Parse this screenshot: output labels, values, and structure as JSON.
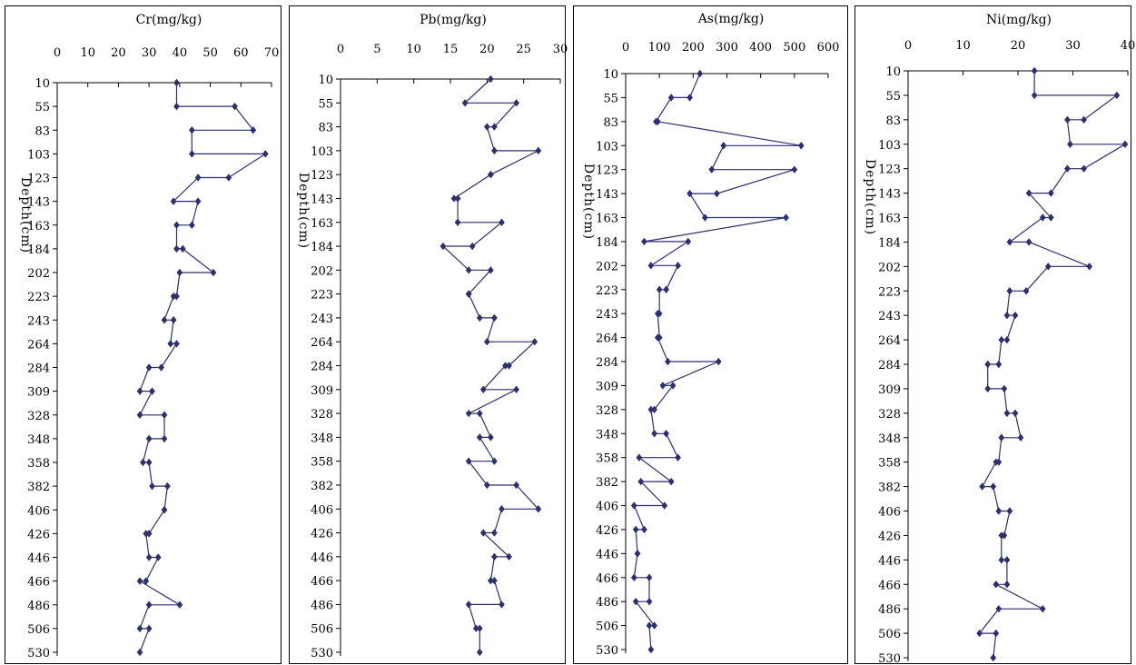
{
  "chart_data": [
    {
      "type": "line",
      "title": "Cr(mg/kg)",
      "ylabel": "Depth(cm)",
      "xlim": [
        0,
        70
      ],
      "xticks": [
        0,
        10,
        20,
        30,
        40,
        50,
        60,
        70
      ],
      "depths": [
        10,
        55,
        83,
        103,
        123,
        143,
        163,
        184,
        202,
        223,
        243,
        264,
        284,
        309,
        328,
        348,
        358,
        382,
        406,
        426,
        446,
        466,
        486,
        506,
        530
      ],
      "points": [
        {
          "y": 10,
          "x": 39
        },
        {
          "y": 55,
          "x": 39
        },
        {
          "y": 55,
          "x": 58
        },
        {
          "y": 83,
          "x": 64
        },
        {
          "y": 83,
          "x": 44
        },
        {
          "y": 103,
          "x": 44
        },
        {
          "y": 103,
          "x": 68
        },
        {
          "y": 123,
          "x": 56
        },
        {
          "y": 123,
          "x": 46
        },
        {
          "y": 143,
          "x": 38
        },
        {
          "y": 143,
          "x": 46
        },
        {
          "y": 163,
          "x": 44
        },
        {
          "y": 163,
          "x": 39
        },
        {
          "y": 184,
          "x": 39
        },
        {
          "y": 184,
          "x": 41
        },
        {
          "y": 202,
          "x": 51
        },
        {
          "y": 202,
          "x": 40
        },
        {
          "y": 223,
          "x": 39
        },
        {
          "y": 223,
          "x": 38
        },
        {
          "y": 243,
          "x": 35
        },
        {
          "y": 243,
          "x": 38
        },
        {
          "y": 264,
          "x": 37
        },
        {
          "y": 264,
          "x": 39
        },
        {
          "y": 284,
          "x": 34
        },
        {
          "y": 284,
          "x": 30
        },
        {
          "y": 309,
          "x": 27
        },
        {
          "y": 309,
          "x": 31
        },
        {
          "y": 328,
          "x": 27
        },
        {
          "y": 328,
          "x": 35
        },
        {
          "y": 348,
          "x": 35
        },
        {
          "y": 348,
          "x": 30
        },
        {
          "y": 358,
          "x": 28
        },
        {
          "y": 358,
          "x": 30
        },
        {
          "y": 382,
          "x": 31
        },
        {
          "y": 382,
          "x": 36
        },
        {
          "y": 406,
          "x": 35
        },
        {
          "y": 406,
          "x": 35
        },
        {
          "y": 426,
          "x": 30
        },
        {
          "y": 426,
          "x": 29
        },
        {
          "y": 446,
          "x": 30
        },
        {
          "y": 446,
          "x": 33
        },
        {
          "y": 466,
          "x": 29
        },
        {
          "y": 466,
          "x": 27
        },
        {
          "y": 486,
          "x": 40
        },
        {
          "y": 486,
          "x": 30
        },
        {
          "y": 506,
          "x": 27
        },
        {
          "y": 506,
          "x": 30
        },
        {
          "y": 530,
          "x": 27
        }
      ]
    },
    {
      "type": "line",
      "title": "Pb(mg/kg)",
      "ylabel": "Depth(cm)",
      "xlim": [
        0,
        30
      ],
      "xticks": [
        0,
        5,
        10,
        15,
        20,
        25,
        30
      ],
      "depths": [
        10,
        55,
        83,
        103,
        123,
        143,
        163,
        184,
        202,
        223,
        243,
        264,
        284,
        309,
        328,
        348,
        358,
        382,
        406,
        426,
        446,
        466,
        486,
        506,
        530
      ],
      "points": [
        {
          "y": 10,
          "x": 20.5
        },
        {
          "y": 55,
          "x": 17
        },
        {
          "y": 55,
          "x": 24
        },
        {
          "y": 83,
          "x": 21
        },
        {
          "y": 83,
          "x": 20
        },
        {
          "y": 103,
          "x": 21
        },
        {
          "y": 103,
          "x": 27
        },
        {
          "y": 123,
          "x": 20.5
        },
        {
          "y": 123,
          "x": 20.5
        },
        {
          "y": 143,
          "x": 15.5
        },
        {
          "y": 143,
          "x": 16
        },
        {
          "y": 163,
          "x": 16
        },
        {
          "y": 163,
          "x": 22
        },
        {
          "y": 184,
          "x": 18
        },
        {
          "y": 184,
          "x": 14
        },
        {
          "y": 202,
          "x": 17.5
        },
        {
          "y": 202,
          "x": 20.5
        },
        {
          "y": 223,
          "x": 17.5
        },
        {
          "y": 223,
          "x": 17.5
        },
        {
          "y": 243,
          "x": 19
        },
        {
          "y": 243,
          "x": 21
        },
        {
          "y": 264,
          "x": 20
        },
        {
          "y": 264,
          "x": 26.5
        },
        {
          "y": 284,
          "x": 23
        },
        {
          "y": 284,
          "x": 22.5
        },
        {
          "y": 309,
          "x": 19.5
        },
        {
          "y": 309,
          "x": 24
        },
        {
          "y": 328,
          "x": 17.5
        },
        {
          "y": 328,
          "x": 19
        },
        {
          "y": 348,
          "x": 20.5
        },
        {
          "y": 348,
          "x": 19
        },
        {
          "y": 358,
          "x": 21
        },
        {
          "y": 358,
          "x": 17.5
        },
        {
          "y": 382,
          "x": 20
        },
        {
          "y": 382,
          "x": 24
        },
        {
          "y": 406,
          "x": 27
        },
        {
          "y": 406,
          "x": 22
        },
        {
          "y": 426,
          "x": 21
        },
        {
          "y": 426,
          "x": 19.5
        },
        {
          "y": 446,
          "x": 23
        },
        {
          "y": 446,
          "x": 21
        },
        {
          "y": 466,
          "x": 20.5
        },
        {
          "y": 466,
          "x": 21
        },
        {
          "y": 486,
          "x": 22
        },
        {
          "y": 486,
          "x": 17.5
        },
        {
          "y": 506,
          "x": 18.5
        },
        {
          "y": 506,
          "x": 19
        },
        {
          "y": 530,
          "x": 19
        }
      ]
    },
    {
      "type": "line",
      "title": "As(mg/kg)",
      "ylabel": "Depth(cm)",
      "xlim": [
        0,
        600
      ],
      "xticks": [
        0,
        100,
        200,
        300,
        400,
        500,
        600
      ],
      "depths": [
        10,
        55,
        83,
        103,
        123,
        143,
        163,
        184,
        202,
        223,
        243,
        264,
        284,
        309,
        328,
        348,
        358,
        382,
        406,
        426,
        446,
        466,
        486,
        506,
        530
      ],
      "points": [
        {
          "y": 10,
          "x": 220
        },
        {
          "y": 55,
          "x": 190
        },
        {
          "y": 55,
          "x": 135
        },
        {
          "y": 83,
          "x": 90
        },
        {
          "y": 83,
          "x": 95
        },
        {
          "y": 103,
          "x": 520
        },
        {
          "y": 103,
          "x": 290
        },
        {
          "y": 123,
          "x": 255
        },
        {
          "y": 123,
          "x": 500
        },
        {
          "y": 143,
          "x": 270
        },
        {
          "y": 143,
          "x": 190
        },
        {
          "y": 163,
          "x": 235
        },
        {
          "y": 163,
          "x": 475
        },
        {
          "y": 184,
          "x": 55
        },
        {
          "y": 184,
          "x": 185
        },
        {
          "y": 202,
          "x": 75
        },
        {
          "y": 202,
          "x": 155
        },
        {
          "y": 223,
          "x": 120
        },
        {
          "y": 223,
          "x": 100
        },
        {
          "y": 243,
          "x": 100
        },
        {
          "y": 243,
          "x": 95
        },
        {
          "y": 264,
          "x": 100
        },
        {
          "y": 264,
          "x": 95
        },
        {
          "y": 284,
          "x": 125
        },
        {
          "y": 284,
          "x": 275
        },
        {
          "y": 309,
          "x": 110
        },
        {
          "y": 309,
          "x": 140
        },
        {
          "y": 328,
          "x": 85
        },
        {
          "y": 328,
          "x": 75
        },
        {
          "y": 348,
          "x": 85
        },
        {
          "y": 348,
          "x": 120
        },
        {
          "y": 358,
          "x": 155
        },
        {
          "y": 358,
          "x": 40
        },
        {
          "y": 382,
          "x": 135
        },
        {
          "y": 382,
          "x": 45
        },
        {
          "y": 406,
          "x": 115
        },
        {
          "y": 406,
          "x": 25
        },
        {
          "y": 426,
          "x": 55
        },
        {
          "y": 426,
          "x": 30
        },
        {
          "y": 446,
          "x": 35
        },
        {
          "y": 446,
          "x": 35
        },
        {
          "y": 466,
          "x": 25
        },
        {
          "y": 466,
          "x": 70
        },
        {
          "y": 486,
          "x": 70
        },
        {
          "y": 486,
          "x": 30
        },
        {
          "y": 506,
          "x": 85
        },
        {
          "y": 506,
          "x": 70
        },
        {
          "y": 530,
          "x": 75
        }
      ]
    },
    {
      "type": "line",
      "title": "Ni(mg/kg)",
      "ylabel": "Depth(cm)",
      "xlim": [
        0,
        40
      ],
      "xticks": [
        0,
        10,
        20,
        30,
        40
      ],
      "depths": [
        10,
        55,
        83,
        103,
        123,
        143,
        163,
        184,
        202,
        223,
        243,
        264,
        284,
        309,
        328,
        348,
        358,
        382,
        406,
        426,
        446,
        466,
        486,
        506,
        530
      ],
      "points": [
        {
          "y": 10,
          "x": 23
        },
        {
          "y": 55,
          "x": 23
        },
        {
          "y": 55,
          "x": 38
        },
        {
          "y": 83,
          "x": 32
        },
        {
          "y": 83,
          "x": 29
        },
        {
          "y": 103,
          "x": 29.5
        },
        {
          "y": 103,
          "x": 39.5
        },
        {
          "y": 123,
          "x": 32
        },
        {
          "y": 123,
          "x": 29
        },
        {
          "y": 143,
          "x": 26
        },
        {
          "y": 143,
          "x": 22
        },
        {
          "y": 163,
          "x": 26
        },
        {
          "y": 163,
          "x": 24.5
        },
        {
          "y": 184,
          "x": 18.5
        },
        {
          "y": 184,
          "x": 22
        },
        {
          "y": 202,
          "x": 33
        },
        {
          "y": 202,
          "x": 25.5
        },
        {
          "y": 223,
          "x": 21.5
        },
        {
          "y": 223,
          "x": 18.5
        },
        {
          "y": 243,
          "x": 18
        },
        {
          "y": 243,
          "x": 19.5
        },
        {
          "y": 264,
          "x": 18
        },
        {
          "y": 264,
          "x": 17
        },
        {
          "y": 284,
          "x": 16.5
        },
        {
          "y": 284,
          "x": 14.5
        },
        {
          "y": 309,
          "x": 14.5
        },
        {
          "y": 309,
          "x": 17.5
        },
        {
          "y": 328,
          "x": 18
        },
        {
          "y": 328,
          "x": 19.5
        },
        {
          "y": 348,
          "x": 20.5
        },
        {
          "y": 348,
          "x": 17
        },
        {
          "y": 358,
          "x": 16.5
        },
        {
          "y": 358,
          "x": 16
        },
        {
          "y": 382,
          "x": 13.5
        },
        {
          "y": 382,
          "x": 15.5
        },
        {
          "y": 406,
          "x": 16.5
        },
        {
          "y": 406,
          "x": 18.5
        },
        {
          "y": 426,
          "x": 17.5
        },
        {
          "y": 426,
          "x": 17
        },
        {
          "y": 446,
          "x": 17
        },
        {
          "y": 446,
          "x": 18
        },
        {
          "y": 466,
          "x": 18
        },
        {
          "y": 466,
          "x": 16
        },
        {
          "y": 486,
          "x": 24.5
        },
        {
          "y": 486,
          "x": 16.5
        },
        {
          "y": 506,
          "x": 13
        },
        {
          "y": 506,
          "x": 16
        },
        {
          "y": 530,
          "x": 15.5
        }
      ]
    }
  ],
  "colors": {
    "series": "#2e2f6e",
    "axis": "#000000"
  }
}
